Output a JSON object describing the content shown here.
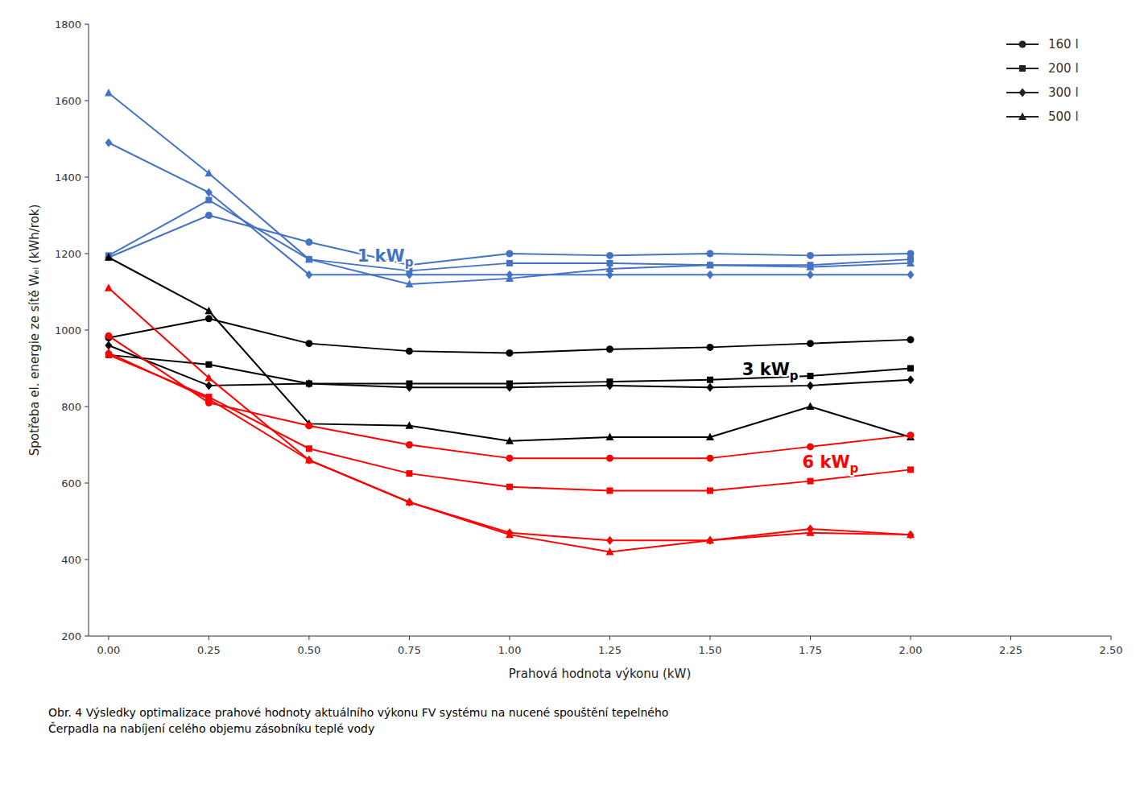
{
  "chart_data": {
    "type": "line",
    "xlabel": "Prahová hodnota výkonu (kW)",
    "ylabel": "Spotřeba el. energie ze sítě Wₑₗ (kWh/rok)",
    "caption": "Obr. 4 Výsledky optimalizace prahové hodnoty aktuálního výkonu FV systému na nucené spouštění tepelného\nČerpadla na nabíjení celého objemu zásobníku teplé vody",
    "x": [
      0.0,
      0.25,
      0.5,
      0.75,
      1.0,
      1.25,
      1.5,
      1.75,
      2.0
    ],
    "series": [
      {
        "name": "160 l",
        "color": "#4472c4",
        "marker": "circle",
        "values": [
          1190,
          1300,
          1230,
          1170,
          1200,
          1195,
          1200,
          1195,
          1200
        ]
      },
      {
        "name": "200 l",
        "color": "#4472c4",
        "marker": "square",
        "values": [
          1195,
          1340,
          1185,
          1155,
          1175,
          1175,
          1170,
          1170,
          1185
        ]
      },
      {
        "name": "300 l",
        "color": "#4472c4",
        "marker": "diamond",
        "values": [
          1490,
          1360,
          1145,
          1145,
          1145,
          1145,
          1145,
          1145,
          1145
        ]
      },
      {
        "name": "500 l",
        "color": "#4472c4",
        "marker": "triangle",
        "values": [
          1620,
          1410,
          1185,
          1120,
          1135,
          1160,
          1170,
          1165,
          1175
        ]
      },
      {
        "name": "160 l",
        "color": "#000000",
        "marker": "circle",
        "values": [
          980,
          1030,
          965,
          945,
          940,
          950,
          955,
          965,
          975
        ]
      },
      {
        "name": "200 l",
        "color": "#000000",
        "marker": "square",
        "values": [
          935,
          910,
          860,
          860,
          860,
          865,
          870,
          880,
          900
        ]
      },
      {
        "name": "300 l",
        "color": "#000000",
        "marker": "diamond",
        "values": [
          960,
          855,
          860,
          850,
          850,
          855,
          850,
          855,
          870
        ]
      },
      {
        "name": "500 l",
        "color": "#000000",
        "marker": "triangle",
        "values": [
          1190,
          1050,
          755,
          750,
          710,
          720,
          720,
          800,
          720
        ]
      },
      {
        "name": "160 l",
        "color": "#ff0000",
        "marker": "circle",
        "values": [
          985,
          810,
          750,
          700,
          665,
          665,
          665,
          695,
          725
        ]
      },
      {
        "name": "200 l",
        "color": "#ff0000",
        "marker": "square",
        "values": [
          935,
          825,
          690,
          625,
          590,
          580,
          580,
          605,
          635
        ]
      },
      {
        "name": "300 l",
        "color": "#ff0000",
        "marker": "diamond",
        "values": [
          940,
          820,
          660,
          550,
          470,
          450,
          450,
          480,
          465
        ]
      },
      {
        "name": "500 l",
        "color": "#ff0000",
        "marker": "triangle",
        "values": [
          1110,
          875,
          660,
          550,
          465,
          420,
          450,
          470,
          465
        ]
      }
    ],
    "xlim": [
      -0.05,
      2.5
    ],
    "ylim": [
      200,
      1800
    ],
    "xticks": [
      {
        "value": 0.0,
        "label": "0.00"
      },
      {
        "value": 0.25,
        "label": "0.25"
      },
      {
        "value": 0.5,
        "label": "0.50"
      },
      {
        "value": 0.75,
        "label": "0.75"
      },
      {
        "value": 1.0,
        "label": "1.00"
      },
      {
        "value": 1.25,
        "label": "1.25"
      },
      {
        "value": 1.5,
        "label": "1.50"
      },
      {
        "value": 1.75,
        "label": "1.75"
      },
      {
        "value": 2.0,
        "label": "2.00"
      },
      {
        "value": 2.25,
        "label": "2.25"
      },
      {
        "value": 2.5,
        "label": "2.50"
      }
    ],
    "yticks": [
      200,
      400,
      600,
      800,
      1000,
      1200,
      1400,
      1600,
      1800
    ],
    "annotations": [
      {
        "text": "1 kW",
        "sub": "p",
        "x": 0.62,
        "y": 1178,
        "color": "#4472c4"
      },
      {
        "text": "3 kW",
        "sub": "p",
        "x": 1.58,
        "y": 882,
        "color": "#000000"
      },
      {
        "text": "6 kW",
        "sub": "p",
        "x": 1.73,
        "y": 640,
        "color": "#ff0000"
      }
    ],
    "grid": false,
    "legend": "upper right"
  }
}
